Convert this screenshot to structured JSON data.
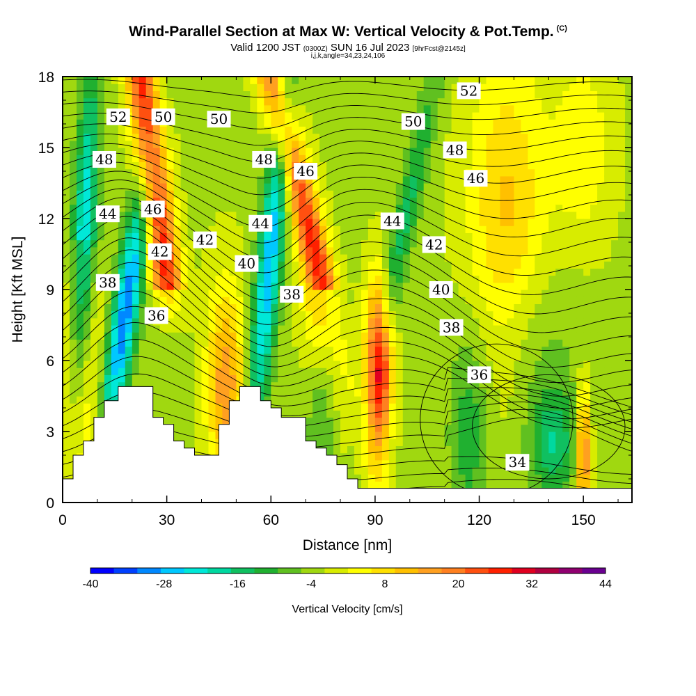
{
  "title": "Wind-Parallel Section at Max W: Vertical Velocity & Pot.Temp.",
  "copyright": "(C)",
  "subtitle": {
    "valid_prefix": "Valid 1200 JST",
    "utc": "(0300Z)",
    "date": "SUN 16 Jul 2023",
    "forecast": "[9hrFcst@2145z]"
  },
  "subtitle2": "i,j,k,angle=34,23,24,106",
  "chart_data": {
    "type": "heatmap",
    "xlabel": "Distance [nm]",
    "ylabel": "Height [Kft MSL]",
    "xlim": [
      0,
      164
    ],
    "ylim": [
      0,
      18
    ],
    "xticks": [
      0,
      30,
      60,
      90,
      120,
      150
    ],
    "yticks": [
      0,
      3,
      6,
      9,
      12,
      15,
      18
    ],
    "colorbar": {
      "label": "Vertical Velocity [cm/s]",
      "tick_labels": [
        -40,
        -28,
        -16,
        -4,
        8,
        20,
        32,
        44
      ],
      "levels": [
        -40,
        -36,
        -32,
        -28,
        -24,
        -20,
        -16,
        -12,
        -8,
        -4,
        0,
        4,
        8,
        12,
        16,
        20,
        24,
        28,
        32,
        36,
        40,
        44
      ],
      "colors": [
        "#0000ff",
        "#0040ff",
        "#0088ff",
        "#00c8ff",
        "#00e8d8",
        "#00d8a0",
        "#10c060",
        "#20b030",
        "#60c020",
        "#a0d810",
        "#d8ec00",
        "#ffff00",
        "#ffe000",
        "#ffc000",
        "#ffa020",
        "#ff8020",
        "#ff5010",
        "#ff2000",
        "#e00020",
        "#b00040",
        "#900070",
        "#6a0090"
      ]
    },
    "contour_variable": "Potential Temperature",
    "contour_labels": [
      {
        "text": "52",
        "x": 16,
        "y": 16.3
      },
      {
        "text": "50",
        "x": 29,
        "y": 16.3
      },
      {
        "text": "50",
        "x": 45,
        "y": 16.2
      },
      {
        "text": "48",
        "x": 12,
        "y": 14.5
      },
      {
        "text": "48",
        "x": 58,
        "y": 14.5
      },
      {
        "text": "46",
        "x": 26,
        "y": 12.4
      },
      {
        "text": "46",
        "x": 70,
        "y": 14.0
      },
      {
        "text": "44",
        "x": 13,
        "y": 12.2
      },
      {
        "text": "44",
        "x": 57,
        "y": 11.8
      },
      {
        "text": "42",
        "x": 28,
        "y": 10.6
      },
      {
        "text": "42",
        "x": 41,
        "y": 11.1
      },
      {
        "text": "40",
        "x": 53,
        "y": 10.1
      },
      {
        "text": "38",
        "x": 13,
        "y": 9.3
      },
      {
        "text": "38",
        "x": 66,
        "y": 8.8
      },
      {
        "text": "36",
        "x": 27,
        "y": 7.9
      },
      {
        "text": "52",
        "x": 117,
        "y": 17.4
      },
      {
        "text": "50",
        "x": 101,
        "y": 16.1
      },
      {
        "text": "48",
        "x": 113,
        "y": 14.9
      },
      {
        "text": "46",
        "x": 119,
        "y": 13.7
      },
      {
        "text": "44",
        "x": 95,
        "y": 11.9
      },
      {
        "text": "42",
        "x": 107,
        "y": 10.9
      },
      {
        "text": "40",
        "x": 109,
        "y": 9.0
      },
      {
        "text": "38",
        "x": 112,
        "y": 7.4
      },
      {
        "text": "36",
        "x": 120,
        "y": 5.4
      },
      {
        "text": "34",
        "x": 131,
        "y": 1.7
      }
    ],
    "terrain": [
      [
        0,
        1
      ],
      [
        3,
        1
      ],
      [
        3,
        2
      ],
      [
        6,
        2
      ],
      [
        6,
        2.6
      ],
      [
        9,
        2.6
      ],
      [
        9,
        3.6
      ],
      [
        12,
        3.6
      ],
      [
        12,
        4.3
      ],
      [
        16,
        4.3
      ],
      [
        16,
        4.9
      ],
      [
        26,
        4.9
      ],
      [
        26,
        3.6
      ],
      [
        29,
        3.6
      ],
      [
        29,
        3.3
      ],
      [
        32,
        3.3
      ],
      [
        32,
        2.6
      ],
      [
        35,
        2.6
      ],
      [
        35,
        2.3
      ],
      [
        38,
        2.3
      ],
      [
        38,
        2.0
      ],
      [
        45,
        2.0
      ],
      [
        45,
        3.3
      ],
      [
        48,
        3.3
      ],
      [
        48,
        4.3
      ],
      [
        51,
        4.3
      ],
      [
        51,
        4.9
      ],
      [
        57,
        4.9
      ],
      [
        57,
        4.3
      ],
      [
        60,
        4.3
      ],
      [
        60,
        4.0
      ],
      [
        63,
        4.0
      ],
      [
        63,
        3.6
      ],
      [
        70,
        3.6
      ],
      [
        70,
        2.6
      ],
      [
        73,
        2.6
      ],
      [
        73,
        2.3
      ],
      [
        76,
        2.3
      ],
      [
        76,
        2.0
      ],
      [
        79,
        2.0
      ],
      [
        79,
        1.6
      ],
      [
        82,
        1.6
      ],
      [
        82,
        1.0
      ],
      [
        85,
        1.0
      ],
      [
        85,
        0.6
      ],
      [
        164,
        0.6
      ]
    ]
  }
}
